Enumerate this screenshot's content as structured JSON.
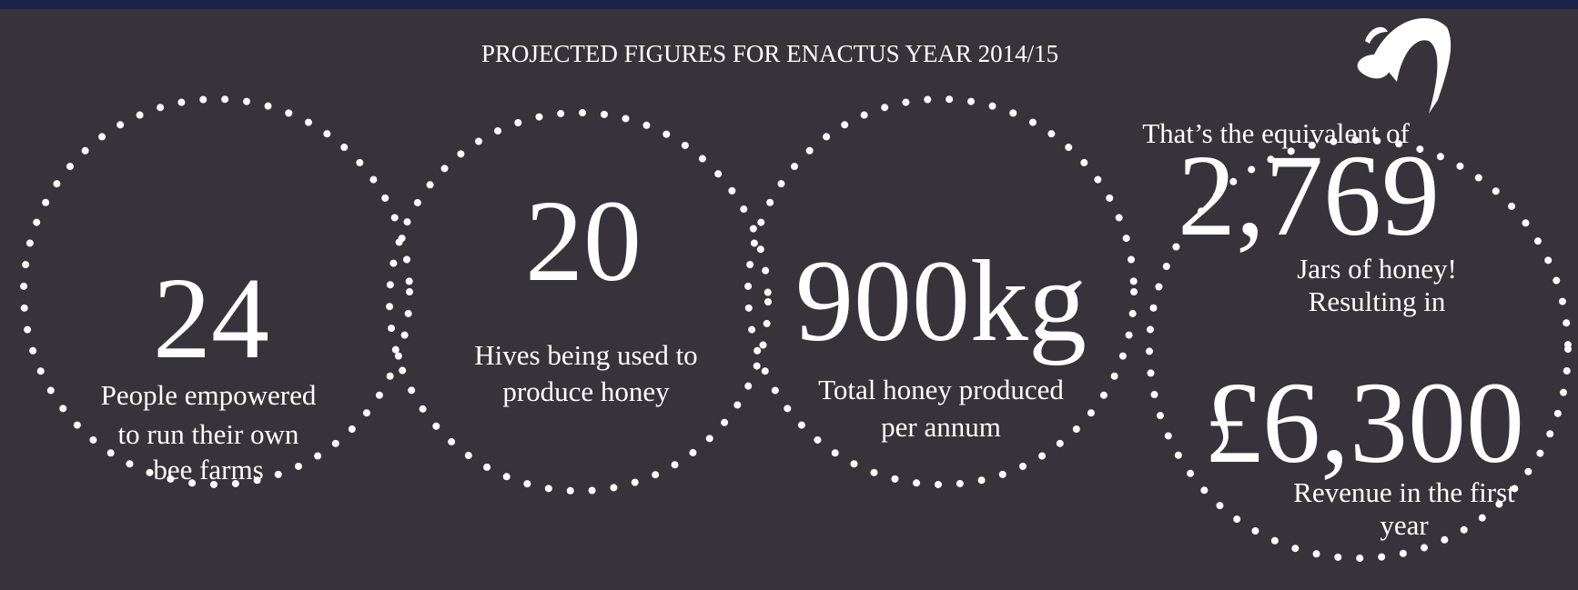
{
  "title": "PROJECTED FIGURES FOR ENACTUS YEAR 2014/15",
  "stats": [
    {
      "value": "24",
      "caption": [
        "People empowered",
        "to run their own",
        "bee farms"
      ]
    },
    {
      "value": "20",
      "caption": [
        "Hives being used to",
        "produce honey"
      ]
    },
    {
      "value": "900kg",
      "caption": [
        "Total honey produced",
        "per annum"
      ]
    }
  ],
  "equivalent": {
    "intro": "That’s the equivalent of",
    "value": "2,769",
    "caption": [
      "Jars of honey!",
      "Resulting in"
    ]
  },
  "revenue": {
    "value": "£6,300",
    "caption": [
      "Revenue in the first",
      "year"
    ]
  }
}
